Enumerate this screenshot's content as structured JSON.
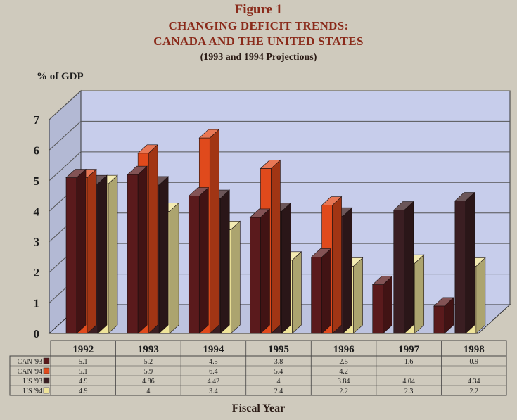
{
  "header": {
    "figure_label": "Figure 1",
    "title_line1": "CHANGING DEFICIT TRENDS:",
    "title_line2": "CANADA AND THE UNITED STATES",
    "subtitle": "(1993 and 1994 Projections)"
  },
  "colors": {
    "CAN '93": "#5a1a1c",
    "CAN '94": "#e04a1c",
    "US '93": "#3a1e22",
    "US '94": "#efe49a",
    "back_wall": "#c7cdeb",
    "floor": "#c7cdeb"
  },
  "chart_data": {
    "type": "bar",
    "title": "CHANGING DEFICIT TRENDS: CANADA AND THE UNITED STATES",
    "subtitle": "(1993 and 1994 Projections)",
    "ylabel": "% of GDP",
    "xlabel": "Fiscal Year",
    "ylim": [
      0,
      7
    ],
    "yticks": [
      "0",
      "1",
      "2",
      "3",
      "4",
      "5",
      "6",
      "7"
    ],
    "grid": true,
    "legend": "table-left",
    "categories": [
      "1992",
      "1993",
      "1994",
      "1995",
      "1996",
      "1997",
      "1998"
    ],
    "series": [
      {
        "name": "CAN '93",
        "values": [
          5.1,
          5.2,
          4.5,
          3.8,
          2.5,
          1.6,
          0.9
        ],
        "labels": [
          "5.1",
          "5.2",
          "4.5",
          "3.8",
          "2.5",
          "1.6",
          "0.9"
        ]
      },
      {
        "name": "CAN '94",
        "values": [
          5.1,
          5.9,
          6.4,
          5.4,
          4.2,
          null,
          null
        ],
        "labels": [
          "5.1",
          "5.9",
          "6.4",
          "5.4",
          "4.2",
          "",
          ""
        ]
      },
      {
        "name": "US '93",
        "values": [
          4.9,
          4.86,
          4.42,
          4,
          3.84,
          4.04,
          4.34
        ],
        "labels": [
          "4.9",
          "4.86",
          "4.42",
          "4",
          "3.84",
          "4.04",
          "4.34"
        ]
      },
      {
        "name": "US '94",
        "values": [
          4.9,
          4,
          3.4,
          2.4,
          2.2,
          2.3,
          2.2
        ],
        "labels": [
          "4.9",
          "4",
          "3.4",
          "2.4",
          "2.2",
          "2.3",
          "2.2"
        ]
      }
    ]
  }
}
